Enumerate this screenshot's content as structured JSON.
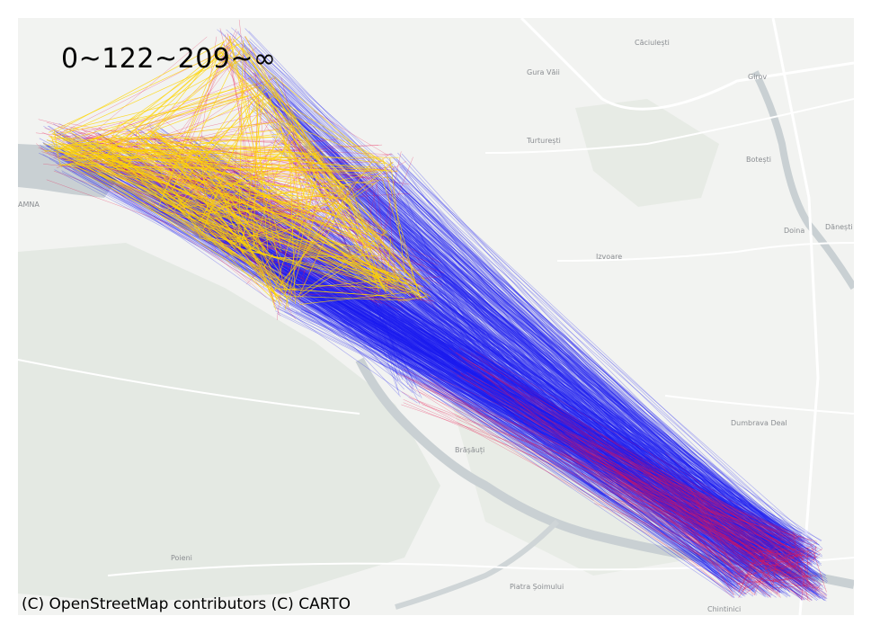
{
  "legend": {
    "breaks_label": "0~122~209~∞"
  },
  "attribution": "(C) OpenStreetMap contributors (C) CARTO",
  "colors": {
    "band_low": "#ffd400",
    "band_mid": "#e8174d",
    "band_high": "#1d1df2",
    "land": "#f2f3f1",
    "water": "#c9d0d3",
    "roads": "#ffffff"
  },
  "place_labels": [
    {
      "name": "Căciulești"
    },
    {
      "name": "Gura Văii"
    },
    {
      "name": "Girov"
    },
    {
      "name": "Turturești"
    },
    {
      "name": "Botești"
    },
    {
      "name": "Doina"
    },
    {
      "name": "Dănești"
    },
    {
      "name": "Izvoare"
    },
    {
      "name": "Dumbrava Deal"
    },
    {
      "name": "Brășăuți"
    },
    {
      "name": "Poieni"
    },
    {
      "name": "Piatra Șoimului"
    },
    {
      "name": "Chintinici"
    },
    {
      "name": "AMNA"
    }
  ]
}
